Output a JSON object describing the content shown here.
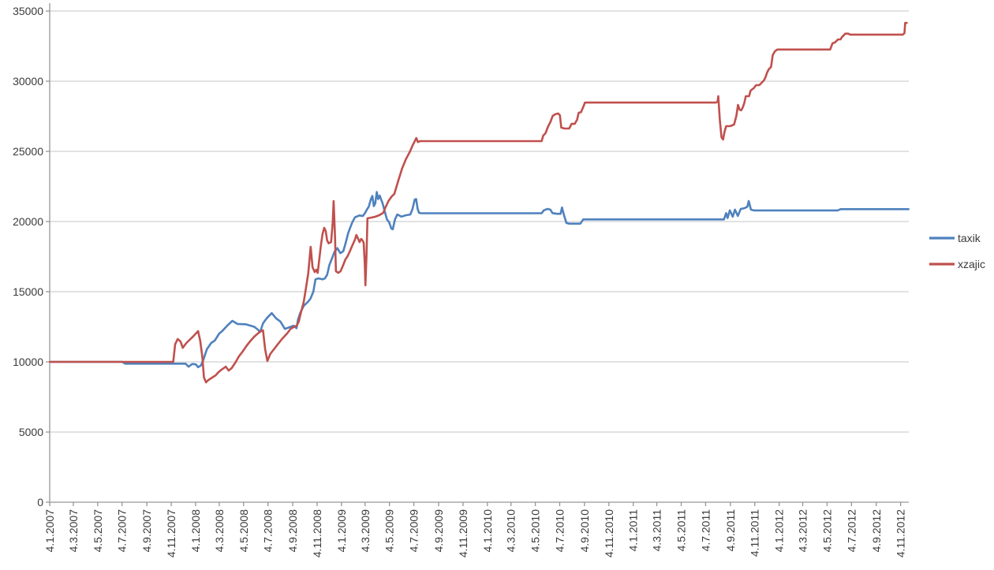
{
  "colors": {
    "series_taxik": "#4F81BD",
    "series_xzajic": "#C0504D",
    "gridline": "#C6C6C6",
    "axis": "#969696",
    "text": "#3A3A3A",
    "background": "#FFFFFF"
  },
  "legend": {
    "position": "right"
  },
  "chart_data": {
    "type": "line",
    "title": "",
    "xlabel": "",
    "ylabel": "",
    "grid": true,
    "legend_position": "right",
    "x_axis": {
      "type": "time",
      "t_start": 2007.008,
      "t_end": 2012.897,
      "tick_labels": [
        "4.1.2007",
        "4.3.2007",
        "4.5.2007",
        "4.7.2007",
        "4.9.2007",
        "4.11.2007",
        "4.1.2008",
        "4.3.2008",
        "4.5.2008",
        "4.7.2008",
        "4.9.2008",
        "4.11.2008",
        "4.1.2009",
        "4.3.2009",
        "4.5.2009",
        "4.7.2009",
        "4.9.2009",
        "4.11.2009",
        "4.1.2010",
        "4.3.2010",
        "4.5.2010",
        "4.7.2010",
        "4.9.2010",
        "4.11.2010",
        "4.1.2011",
        "4.3.2011",
        "4.5.2011",
        "4.7.2011",
        "4.9.2011",
        "4.11.2011",
        "4.1.2012",
        "4.3.2012",
        "4.5.2012",
        "4.7.2012",
        "4.9.2012",
        "4.11.2012"
      ]
    },
    "y_axis": {
      "min": 0,
      "max": 35000,
      "step": 5000,
      "tick_labels": [
        "0",
        "5000",
        "10000",
        "15000",
        "20000",
        "25000",
        "30000",
        "35000"
      ]
    },
    "series": [
      {
        "name": "taxik",
        "color": "#4F81BD",
        "points": [
          [
            2007.01,
            10000
          ],
          [
            2007.505,
            10000
          ],
          [
            2007.525,
            9870
          ],
          [
            2007.94,
            9870
          ],
          [
            2007.96,
            9660
          ],
          [
            2007.985,
            9850
          ],
          [
            2008.01,
            9820
          ],
          [
            2008.025,
            9620
          ],
          [
            2008.045,
            9750
          ],
          [
            2008.06,
            10100
          ],
          [
            2008.085,
            10900
          ],
          [
            2008.115,
            11350
          ],
          [
            2008.14,
            11520
          ],
          [
            2008.17,
            12020
          ],
          [
            2008.19,
            12190
          ],
          [
            2008.225,
            12580
          ],
          [
            2008.26,
            12920
          ],
          [
            2008.295,
            12700
          ],
          [
            2008.35,
            12680
          ],
          [
            2008.41,
            12500
          ],
          [
            2008.435,
            12300
          ],
          [
            2008.45,
            12120
          ],
          [
            2008.47,
            12750
          ],
          [
            2008.495,
            13100
          ],
          [
            2008.53,
            13480
          ],
          [
            2008.56,
            13100
          ],
          [
            2008.59,
            12870
          ],
          [
            2008.62,
            12350
          ],
          [
            2008.64,
            12420
          ],
          [
            2008.68,
            12580
          ],
          [
            2008.7,
            12400
          ],
          [
            2008.71,
            13000
          ],
          [
            2008.725,
            13480
          ],
          [
            2008.75,
            14000
          ],
          [
            2008.775,
            14250
          ],
          [
            2008.795,
            14500
          ],
          [
            2008.815,
            15000
          ],
          [
            2008.83,
            15880
          ],
          [
            2008.85,
            15950
          ],
          [
            2008.88,
            15880
          ],
          [
            2008.895,
            15950
          ],
          [
            2008.91,
            16200
          ],
          [
            2008.925,
            16900
          ],
          [
            2008.945,
            17420
          ],
          [
            2008.96,
            17850
          ],
          [
            2008.98,
            18100
          ],
          [
            2009.0,
            17750
          ],
          [
            2009.02,
            17880
          ],
          [
            2009.035,
            18400
          ],
          [
            2009.055,
            19200
          ],
          [
            2009.08,
            19900
          ],
          [
            2009.1,
            20300
          ],
          [
            2009.13,
            20430
          ],
          [
            2009.155,
            20400
          ],
          [
            2009.17,
            20620
          ],
          [
            2009.185,
            20900
          ],
          [
            2009.195,
            21050
          ],
          [
            2009.21,
            21600
          ],
          [
            2009.22,
            21820
          ],
          [
            2009.23,
            21100
          ],
          [
            2009.24,
            21300
          ],
          [
            2009.25,
            22100
          ],
          [
            2009.26,
            21600
          ],
          [
            2009.27,
            21850
          ],
          [
            2009.29,
            21300
          ],
          [
            2009.305,
            20700
          ],
          [
            2009.32,
            20150
          ],
          [
            2009.335,
            19950
          ],
          [
            2009.35,
            19500
          ],
          [
            2009.36,
            19450
          ],
          [
            2009.375,
            20150
          ],
          [
            2009.39,
            20500
          ],
          [
            2009.42,
            20350
          ],
          [
            2009.45,
            20450
          ],
          [
            2009.48,
            20500
          ],
          [
            2009.495,
            20900
          ],
          [
            2009.51,
            21570
          ],
          [
            2009.52,
            21600
          ],
          [
            2009.53,
            20900
          ],
          [
            2009.54,
            20620
          ],
          [
            2009.555,
            20590
          ],
          [
            2010.38,
            20590
          ],
          [
            2010.395,
            20800
          ],
          [
            2010.42,
            20900
          ],
          [
            2010.44,
            20850
          ],
          [
            2010.455,
            20600
          ],
          [
            2010.485,
            20550
          ],
          [
            2010.51,
            20550
          ],
          [
            2010.52,
            21000
          ],
          [
            2010.535,
            20400
          ],
          [
            2010.55,
            19900
          ],
          [
            2010.57,
            19850
          ],
          [
            2010.645,
            19850
          ],
          [
            2010.665,
            20150
          ],
          [
            2011.63,
            20150
          ],
          [
            2011.645,
            20600
          ],
          [
            2011.655,
            20250
          ],
          [
            2011.67,
            20800
          ],
          [
            2011.69,
            20350
          ],
          [
            2011.705,
            20850
          ],
          [
            2011.725,
            20400
          ],
          [
            2011.745,
            20900
          ],
          [
            2011.77,
            20950
          ],
          [
            2011.79,
            21050
          ],
          [
            2011.8,
            21460
          ],
          [
            2011.815,
            20850
          ],
          [
            2011.835,
            20790
          ],
          [
            2012.41,
            20790
          ],
          [
            2012.43,
            20880
          ],
          [
            2012.895,
            20880
          ]
        ]
      },
      {
        "name": "xzajic",
        "color": "#C0504D",
        "points": [
          [
            2007.01,
            10000
          ],
          [
            2007.855,
            10000
          ],
          [
            2007.868,
            11250
          ],
          [
            2007.885,
            11630
          ],
          [
            2007.905,
            11450
          ],
          [
            2007.92,
            11000
          ],
          [
            2007.945,
            11350
          ],
          [
            2007.97,
            11600
          ],
          [
            2007.99,
            11800
          ],
          [
            2008.01,
            12020
          ],
          [
            2008.025,
            12190
          ],
          [
            2008.04,
            11500
          ],
          [
            2008.055,
            10300
          ],
          [
            2008.065,
            8900
          ],
          [
            2008.08,
            8540
          ],
          [
            2008.095,
            8700
          ],
          [
            2008.12,
            8870
          ],
          [
            2008.145,
            9040
          ],
          [
            2008.165,
            9270
          ],
          [
            2008.185,
            9440
          ],
          [
            2008.215,
            9660
          ],
          [
            2008.235,
            9380
          ],
          [
            2008.255,
            9550
          ],
          [
            2008.28,
            9940
          ],
          [
            2008.305,
            10390
          ],
          [
            2008.33,
            10730
          ],
          [
            2008.36,
            11180
          ],
          [
            2008.385,
            11500
          ],
          [
            2008.41,
            11800
          ],
          [
            2008.435,
            12020
          ],
          [
            2008.455,
            12190
          ],
          [
            2008.47,
            12250
          ],
          [
            2008.485,
            10900
          ],
          [
            2008.5,
            10060
          ],
          [
            2008.52,
            10560
          ],
          [
            2008.545,
            10900
          ],
          [
            2008.57,
            11230
          ],
          [
            2008.6,
            11630
          ],
          [
            2008.635,
            12020
          ],
          [
            2008.66,
            12360
          ],
          [
            2008.685,
            12500
          ],
          [
            2008.7,
            12580
          ],
          [
            2008.715,
            12860
          ],
          [
            2008.73,
            13500
          ],
          [
            2008.75,
            14300
          ],
          [
            2008.765,
            15280
          ],
          [
            2008.78,
            16290
          ],
          [
            2008.797,
            18200
          ],
          [
            2008.81,
            16740
          ],
          [
            2008.825,
            16400
          ],
          [
            2008.835,
            16570
          ],
          [
            2008.845,
            16340
          ],
          [
            2008.856,
            17300
          ],
          [
            2008.867,
            18310
          ],
          [
            2008.878,
            19100
          ],
          [
            2008.89,
            19550
          ],
          [
            2008.9,
            19320
          ],
          [
            2008.91,
            18650
          ],
          [
            2008.92,
            18450
          ],
          [
            2008.937,
            18540
          ],
          [
            2008.948,
            19900
          ],
          [
            2008.954,
            21460
          ],
          [
            2008.964,
            18900
          ],
          [
            2008.97,
            16460
          ],
          [
            2008.986,
            16340
          ],
          [
            2009.002,
            16460
          ],
          [
            2009.018,
            16850
          ],
          [
            2009.035,
            17300
          ],
          [
            2009.05,
            17530
          ],
          [
            2009.067,
            17920
          ],
          [
            2009.083,
            18310
          ],
          [
            2009.1,
            18710
          ],
          [
            2009.11,
            19040
          ],
          [
            2009.12,
            18820
          ],
          [
            2009.132,
            18540
          ],
          [
            2009.143,
            18760
          ],
          [
            2009.153,
            18650
          ],
          [
            2009.16,
            18480
          ],
          [
            2009.168,
            17000
          ],
          [
            2009.172,
            15450
          ],
          [
            2009.18,
            17600
          ],
          [
            2009.186,
            20230
          ],
          [
            2009.213,
            20280
          ],
          [
            2009.24,
            20340
          ],
          [
            2009.267,
            20450
          ],
          [
            2009.294,
            20620
          ],
          [
            2009.31,
            21010
          ],
          [
            2009.33,
            21460
          ],
          [
            2009.353,
            21790
          ],
          [
            2009.37,
            21960
          ],
          [
            2009.397,
            22900
          ],
          [
            2009.424,
            23800
          ],
          [
            2009.45,
            24450
          ],
          [
            2009.478,
            25000
          ],
          [
            2009.494,
            25390
          ],
          [
            2009.51,
            25720
          ],
          [
            2009.521,
            25950
          ],
          [
            2009.532,
            25670
          ],
          [
            2009.548,
            25730
          ],
          [
            2010.38,
            25730
          ],
          [
            2010.391,
            26130
          ],
          [
            2010.407,
            26290
          ],
          [
            2010.423,
            26740
          ],
          [
            2010.44,
            27080
          ],
          [
            2010.456,
            27530
          ],
          [
            2010.472,
            27640
          ],
          [
            2010.494,
            27700
          ],
          [
            2010.505,
            27580
          ],
          [
            2010.515,
            26690
          ],
          [
            2010.537,
            26630
          ],
          [
            2010.569,
            26630
          ],
          [
            2010.586,
            26960
          ],
          [
            2010.607,
            26960
          ],
          [
            2010.623,
            27250
          ],
          [
            2010.634,
            27750
          ],
          [
            2010.65,
            27800
          ],
          [
            2010.667,
            28200
          ],
          [
            2010.677,
            28480
          ],
          [
            2010.699,
            28480
          ],
          [
            2011.575,
            28480
          ],
          [
            2011.586,
            28540
          ],
          [
            2011.591,
            28930
          ],
          [
            2011.602,
            27200
          ],
          [
            2011.613,
            26000
          ],
          [
            2011.624,
            25840
          ],
          [
            2011.634,
            26400
          ],
          [
            2011.645,
            26800
          ],
          [
            2011.672,
            26800
          ],
          [
            2011.699,
            26910
          ],
          [
            2011.715,
            27530
          ],
          [
            2011.726,
            28310
          ],
          [
            2011.737,
            27980
          ],
          [
            2011.748,
            27920
          ],
          [
            2011.759,
            28140
          ],
          [
            2011.769,
            28430
          ],
          [
            2011.78,
            28930
          ],
          [
            2011.802,
            28930
          ],
          [
            2011.813,
            29330
          ],
          [
            2011.834,
            29500
          ],
          [
            2011.85,
            29720
          ],
          [
            2011.872,
            29720
          ],
          [
            2011.888,
            29890
          ],
          [
            2011.904,
            30060
          ],
          [
            2011.915,
            30290
          ],
          [
            2011.926,
            30620
          ],
          [
            2011.937,
            30850
          ],
          [
            2011.953,
            31020
          ],
          [
            2011.964,
            31860
          ],
          [
            2011.98,
            32140
          ],
          [
            2011.996,
            32260
          ],
          [
            2012.358,
            32260
          ],
          [
            2012.374,
            32700
          ],
          [
            2012.391,
            32760
          ],
          [
            2012.401,
            32870
          ],
          [
            2012.412,
            32980
          ],
          [
            2012.429,
            32980
          ],
          [
            2012.439,
            33150
          ],
          [
            2012.45,
            33260
          ],
          [
            2012.461,
            33390
          ],
          [
            2012.483,
            33390
          ],
          [
            2012.494,
            33320
          ],
          [
            2012.856,
            33320
          ],
          [
            2012.867,
            33430
          ],
          [
            2012.872,
            34150
          ],
          [
            2012.883,
            34150
          ]
        ]
      }
    ]
  }
}
